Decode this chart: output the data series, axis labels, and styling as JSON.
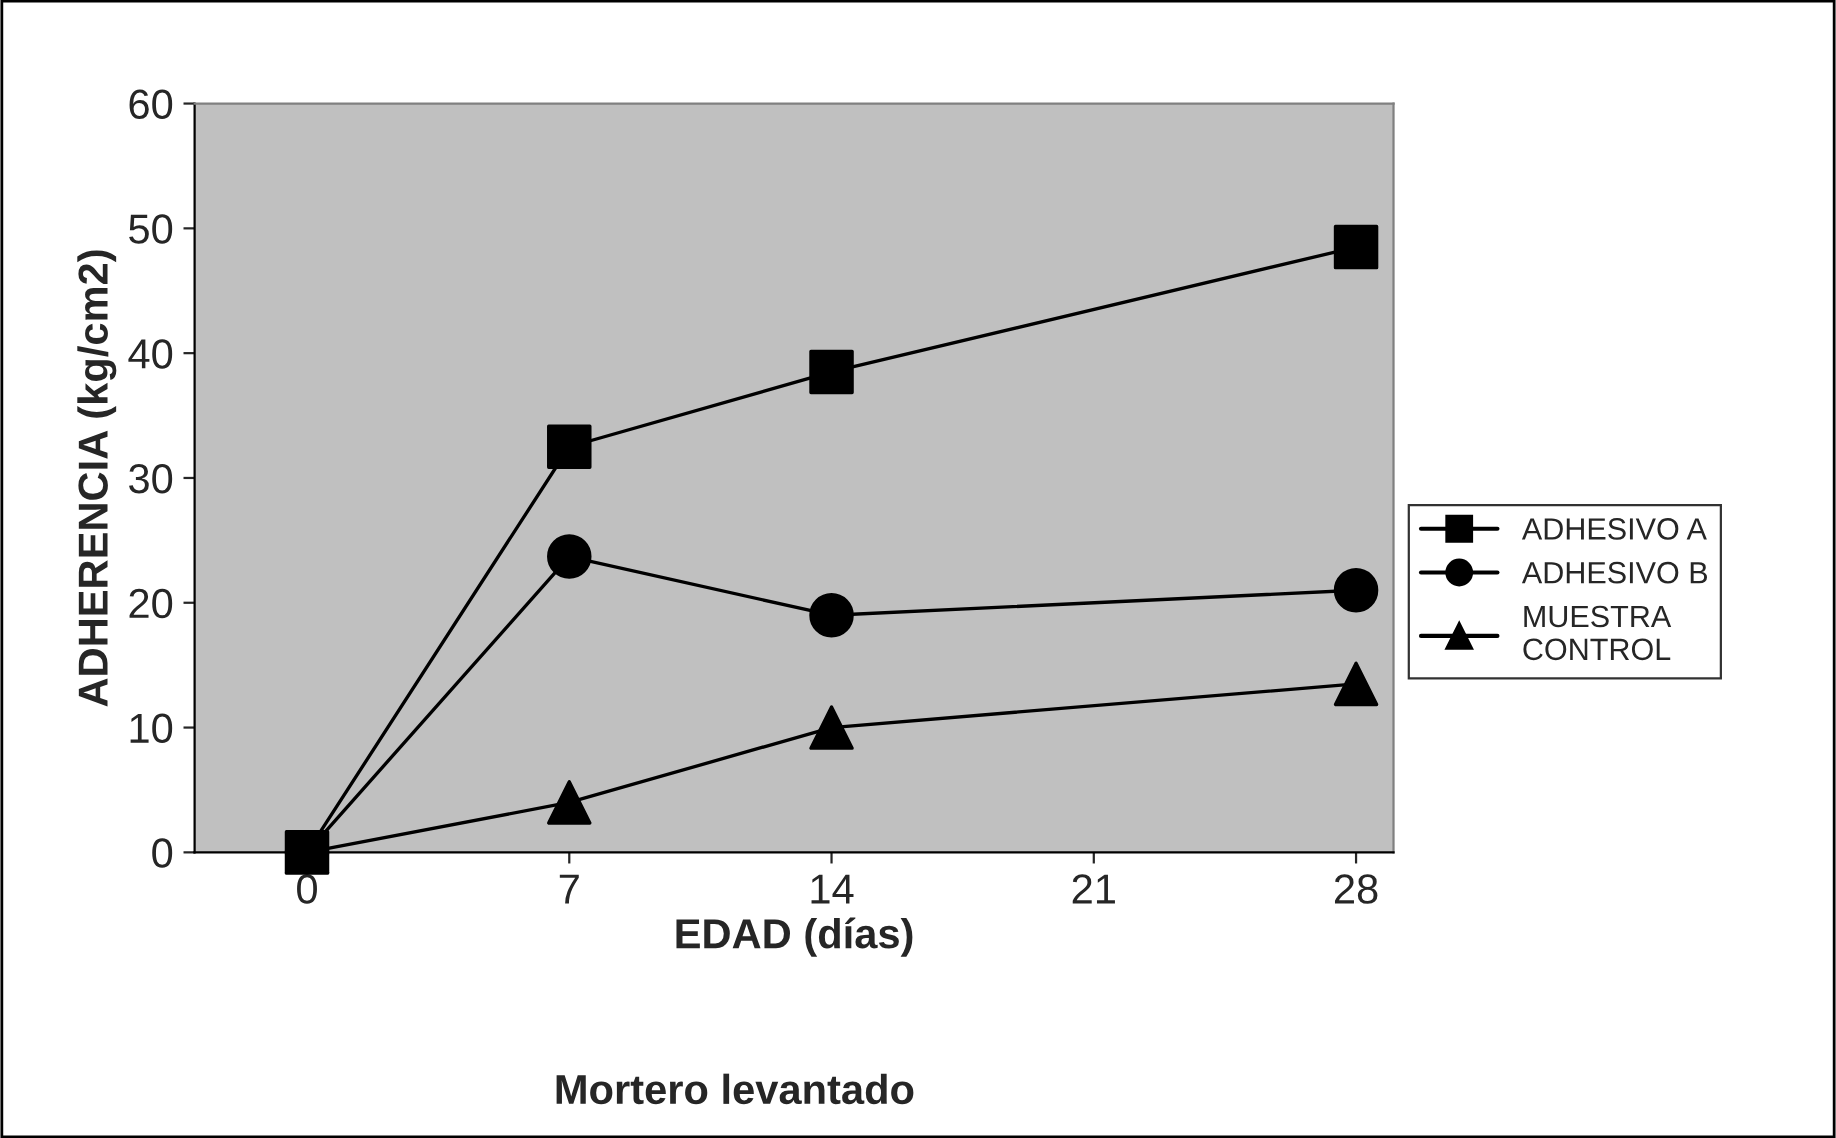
{
  "chart_data": {
    "type": "line",
    "title": "Mortero levantado",
    "xlabel": "EDAD (días)",
    "ylabel": "ADHERENCIA (kg/cm2)",
    "x": [
      0,
      7,
      14,
      28
    ],
    "series": [
      {
        "name": "ADHESIVO A",
        "color": "#000000",
        "marker": "square",
        "values": [
          0,
          32.5,
          38.5,
          48.5
        ]
      },
      {
        "name": "ADHESIVO B",
        "color": "#000000",
        "marker": "circle",
        "values": [
          0,
          23.7,
          19,
          21
        ]
      },
      {
        "name": "MUESTRA\nCONTROL",
        "color": "#000000",
        "marker": "triangle",
        "values": [
          0,
          4,
          10,
          13.5
        ]
      }
    ],
    "xlim": [
      -3,
      29
    ],
    "xticks": [
      0,
      7,
      14,
      21,
      28
    ],
    "ylim": [
      0,
      60
    ],
    "yticks": [
      0,
      10,
      20,
      30,
      40,
      50,
      60
    ],
    "grid": false,
    "legend": "right",
    "line_style": "solid"
  }
}
